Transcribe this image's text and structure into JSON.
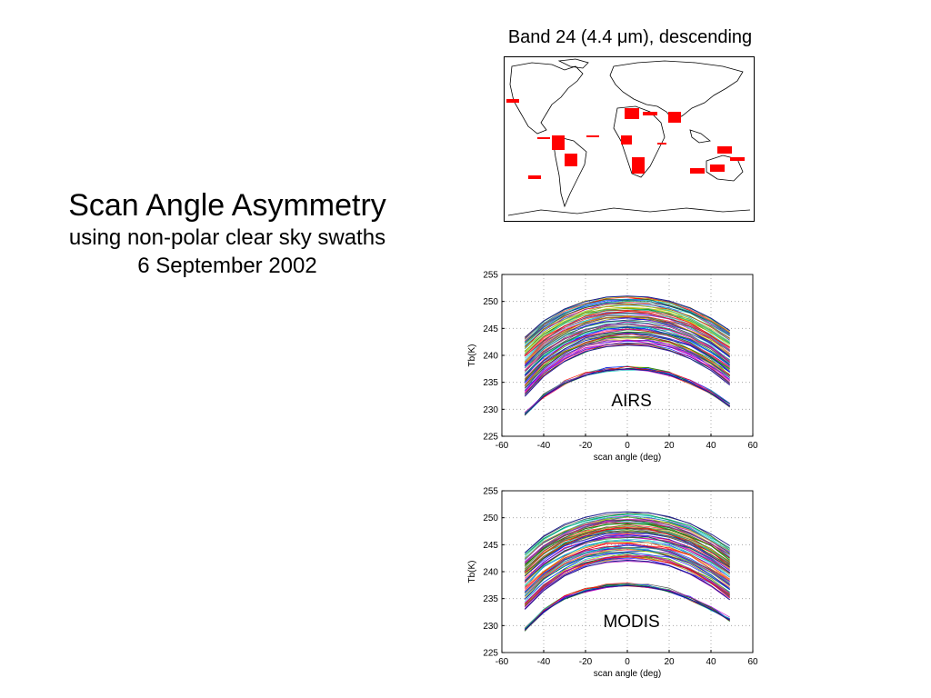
{
  "slide": {
    "title": "Scan Angle Asymmetry",
    "subtitle_1": "using non-polar clear sky swaths",
    "subtitle_2": "6 September 2002"
  },
  "map": {
    "title": "Band 24 (4.4 μm), descending",
    "swath_color": "#ff0000"
  },
  "colors": {
    "line_palette": [
      "#0000ff",
      "#008000",
      "#ff0000",
      "#00bfbf",
      "#bf00bf",
      "#bfbf00",
      "#404040"
    ]
  },
  "chart_data": [
    {
      "type": "line",
      "name": "AIRS",
      "label": "AIRS",
      "xlabel": "scan angle (deg)",
      "ylabel": "Tb(K)",
      "xlim": [
        -60,
        60
      ],
      "ylim": [
        225,
        255
      ],
      "xticks": [
        -60,
        -40,
        -20,
        0,
        20,
        40,
        60
      ],
      "yticks": [
        225,
        230,
        235,
        240,
        245,
        250,
        255
      ],
      "grid": true,
      "x": [
        -49,
        -40,
        -30,
        -20,
        -10,
        0,
        10,
        20,
        30,
        40,
        49
      ],
      "series": [
        {
          "values": [
            243.3,
            246.4,
            248.6,
            250.0,
            250.8,
            251.0,
            250.8,
            250.1,
            248.8,
            246.9,
            244.6
          ]
        },
        {
          "values": [
            232.4,
            236.1,
            238.9,
            240.7,
            241.6,
            241.9,
            241.7,
            240.9,
            239.4,
            237.2,
            234.5
          ]
        },
        {
          "values": [
            229.0,
            232.4,
            234.8,
            236.3,
            237.2,
            237.5,
            237.2,
            236.4,
            234.9,
            233.0,
            230.6
          ]
        }
      ]
    },
    {
      "type": "line",
      "name": "MODIS",
      "label": "MODIS",
      "xlabel": "scan angle (deg)",
      "ylabel": "Tb(K)",
      "xlim": [
        -60,
        60
      ],
      "ylim": [
        225,
        255
      ],
      "xticks": [
        -60,
        -40,
        -20,
        0,
        20,
        40,
        60
      ],
      "yticks": [
        225,
        230,
        235,
        240,
        245,
        250,
        255
      ],
      "grid": true,
      "x": [
        -49,
        -40,
        -30,
        -20,
        -10,
        0,
        10,
        20,
        30,
        40,
        49
      ],
      "series": [
        {
          "values": [
            243.5,
            246.6,
            248.8,
            250.1,
            250.9,
            251.1,
            250.9,
            250.2,
            248.9,
            247.0,
            244.8
          ]
        },
        {
          "values": [
            233.0,
            236.5,
            239.2,
            240.9,
            241.8,
            242.1,
            241.9,
            241.1,
            239.6,
            237.4,
            234.8
          ]
        },
        {
          "values": [
            229.2,
            232.6,
            235.0,
            236.4,
            237.2,
            237.4,
            237.2,
            236.4,
            234.9,
            233.0,
            231.0
          ]
        }
      ]
    }
  ]
}
